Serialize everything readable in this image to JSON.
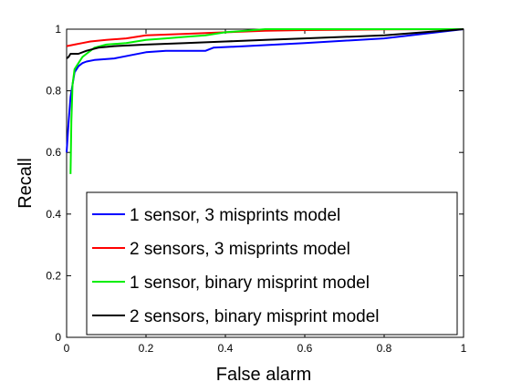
{
  "chart_data": {
    "type": "line",
    "title": "",
    "xlabel": "False alarm",
    "ylabel": "Recall",
    "xlim": [
      0,
      1
    ],
    "ylim": [
      0,
      1
    ],
    "xticks": [
      "0",
      "0.2",
      "0.4",
      "0.6",
      "0.8",
      "1"
    ],
    "yticks": [
      "0",
      "0.2",
      "0.4",
      "0.6",
      "0.8",
      "1"
    ],
    "grid": false,
    "legend_position": "lower-right",
    "series": [
      {
        "name": "1 sensor, 3 misprints model",
        "color": "#0000ff",
        "points": [
          [
            0,
            0.6
          ],
          [
            0.005,
            0.7
          ],
          [
            0.01,
            0.78
          ],
          [
            0.015,
            0.82
          ],
          [
            0.02,
            0.86
          ],
          [
            0.03,
            0.88
          ],
          [
            0.04,
            0.89
          ],
          [
            0.05,
            0.895
          ],
          [
            0.07,
            0.9
          ],
          [
            0.12,
            0.905
          ],
          [
            0.16,
            0.915
          ],
          [
            0.2,
            0.925
          ],
          [
            0.25,
            0.93
          ],
          [
            0.35,
            0.93
          ],
          [
            0.37,
            0.94
          ],
          [
            0.45,
            0.945
          ],
          [
            0.6,
            0.955
          ],
          [
            0.8,
            0.97
          ],
          [
            1,
            1
          ]
        ]
      },
      {
        "name": "2 sensors, 3 misprints model",
        "color": "#ff0000",
        "points": [
          [
            0,
            0.945
          ],
          [
            0.02,
            0.95
          ],
          [
            0.04,
            0.955
          ],
          [
            0.06,
            0.96
          ],
          [
            0.1,
            0.965
          ],
          [
            0.15,
            0.97
          ],
          [
            0.2,
            0.98
          ],
          [
            0.3,
            0.985
          ],
          [
            0.4,
            0.99
          ],
          [
            0.5,
            0.995
          ],
          [
            0.6,
            0.997
          ],
          [
            0.8,
            0.999
          ],
          [
            1,
            1
          ]
        ]
      },
      {
        "name": "1 sensor, binary misprint model",
        "color": "#00ee00",
        "points": [
          [
            0.01,
            0.53
          ],
          [
            0.012,
            0.7
          ],
          [
            0.015,
            0.82
          ],
          [
            0.02,
            0.87
          ],
          [
            0.03,
            0.89
          ],
          [
            0.04,
            0.91
          ],
          [
            0.05,
            0.92
          ],
          [
            0.06,
            0.93
          ],
          [
            0.07,
            0.94
          ],
          [
            0.1,
            0.95
          ],
          [
            0.15,
            0.955
          ],
          [
            0.2,
            0.965
          ],
          [
            0.25,
            0.97
          ],
          [
            0.3,
            0.975
          ],
          [
            0.35,
            0.98
          ],
          [
            0.4,
            0.99
          ],
          [
            0.45,
            0.995
          ],
          [
            0.5,
            1
          ],
          [
            1,
            1
          ]
        ]
      },
      {
        "name": "2 sensors, binary misprint model",
        "color": "#000000",
        "points": [
          [
            0,
            0.905
          ],
          [
            0.005,
            0.91
          ],
          [
            0.01,
            0.92
          ],
          [
            0.03,
            0.92
          ],
          [
            0.05,
            0.93
          ],
          [
            0.08,
            0.94
          ],
          [
            0.12,
            0.945
          ],
          [
            0.2,
            0.95
          ],
          [
            0.3,
            0.955
          ],
          [
            0.4,
            0.96
          ],
          [
            0.5,
            0.965
          ],
          [
            0.6,
            0.97
          ],
          [
            0.8,
            0.98
          ],
          [
            1,
            1
          ]
        ]
      }
    ]
  }
}
